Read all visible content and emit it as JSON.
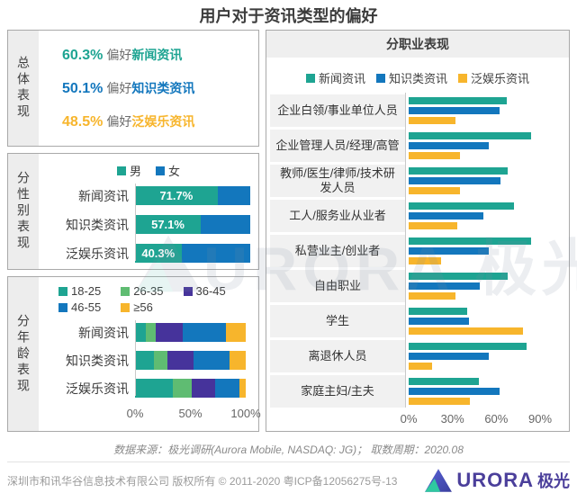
{
  "title": "用户对于资讯类型的偏好",
  "source_note": "数据来源：极光调研(Aurora Mobile, NASDAQ: JG)；  取数周期：2020.08",
  "footer_text": "深圳市和讯华谷信息技术有限公司 版权所有 © 2011-2020 粤ICP备12056275号-13",
  "watermark_text": "URORA 极光",
  "logo": {
    "brand": "URORA",
    "suffix": "极光"
  },
  "brand_colors": {
    "news_teal": "#1EA492",
    "knowledge_blue": "#1377BD",
    "entertainment_yellow": "#F7B52C",
    "age_green": "#5FBC72",
    "age_purple": "#46339B",
    "logo_purple": "#4B3F9B"
  },
  "chart_data": [
    {
      "type": "table",
      "title": "总体表现",
      "items": [
        {
          "value": "60.3%",
          "prefix": "偏好",
          "category": "新闻资讯",
          "color": "#1EA492"
        },
        {
          "value": "50.1%",
          "prefix": "偏好",
          "category": "知识类资讯",
          "color": "#1377BD"
        },
        {
          "value": "48.5%",
          "prefix": "偏好",
          "category": "泛娱乐资讯",
          "color": "#F7B52C"
        }
      ]
    },
    {
      "type": "bar",
      "subtype": "horizontal-stacked",
      "title": "分性别表现",
      "legend_position": "top",
      "categories": [
        "新闻资讯",
        "知识类资讯",
        "泛娱乐资讯"
      ],
      "series": [
        {
          "name": "男",
          "color": "#1EA492",
          "values": [
            71.7,
            57.1,
            40.3
          ]
        },
        {
          "name": "女",
          "color": "#1377BD",
          "values": [
            28.3,
            42.9,
            59.7
          ]
        }
      ],
      "data_labels": [
        "71.7%",
        "57.1%",
        "40.3%"
      ],
      "xlim": [
        0,
        100
      ]
    },
    {
      "type": "bar",
      "subtype": "horizontal-stacked",
      "title": "分年龄表现",
      "legend_position": "top",
      "categories": [
        "新闻资讯",
        "知识类资讯",
        "泛娱乐资讯"
      ],
      "series": [
        {
          "name": "18-25",
          "color": "#1EA492",
          "values": [
            10,
            17,
            34
          ]
        },
        {
          "name": "26-35",
          "color": "#5FBC72",
          "values": [
            9,
            12,
            17
          ]
        },
        {
          "name": "36-45",
          "color": "#46339B",
          "values": [
            24,
            24,
            21
          ]
        },
        {
          "name": "46-55",
          "color": "#1377BD",
          "values": [
            39,
            32,
            22
          ]
        },
        {
          "name": "≥56",
          "color": "#F7B52C",
          "values": [
            18,
            15,
            6
          ]
        }
      ],
      "x_ticks": [
        "0%",
        "50%",
        "100%"
      ],
      "xlim": [
        0,
        100
      ]
    },
    {
      "type": "bar",
      "subtype": "horizontal-grouped",
      "title": "分职业表现",
      "legend_position": "top",
      "categories": [
        "企业白领/事业单位人员",
        "企业管理人员/经理/高管",
        "教师/医生/律师/技术研发人员",
        "工人/服务业从业者",
        "私营业主/创业者",
        "自由职业",
        "学生",
        "离退休人员",
        "家庭主妇/主夫"
      ],
      "series": [
        {
          "name": "新闻资讯",
          "color": "#1EA492",
          "values": [
            67,
            84,
            68,
            72,
            84,
            68,
            40,
            81,
            48
          ]
        },
        {
          "name": "知识类资讯",
          "color": "#1377BD",
          "values": [
            62,
            55,
            63,
            51,
            55,
            49,
            41,
            55,
            62
          ]
        },
        {
          "name": "泛娱乐资讯",
          "color": "#F7B52C",
          "values": [
            32,
            35,
            35,
            33,
            22,
            32,
            78,
            16,
            42
          ]
        }
      ],
      "x_ticks": [
        "0%",
        "30%",
        "60%",
        "90%"
      ],
      "xlim": [
        0,
        110
      ]
    }
  ]
}
